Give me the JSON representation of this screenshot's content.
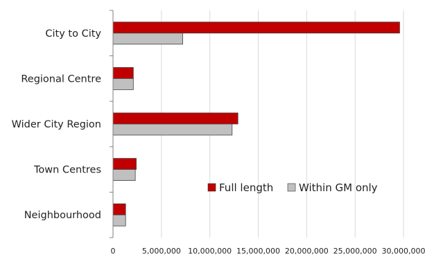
{
  "chart_data": {
    "type": "bar",
    "orientation": "horizontal",
    "categories": [
      "City to City",
      "Regional Centre",
      "Wider City Region",
      "Town Centres",
      "Neighbourhood"
    ],
    "series": [
      {
        "name": "Full length",
        "color": "#c00000",
        "values": [
          29600000,
          2100000,
          12900000,
          2400000,
          1300000
        ]
      },
      {
        "name": "Within GM only",
        "color": "#c0c0c0",
        "values": [
          7200000,
          2100000,
          12300000,
          2300000,
          1300000
        ]
      }
    ],
    "xlim": [
      0,
      30000000
    ],
    "xticks": [
      0,
      5000000,
      10000000,
      15000000,
      20000000,
      25000000,
      30000000
    ],
    "xtick_labels": [
      "0",
      "5,000,000",
      "10,000,000",
      "15,000,000",
      "20,000,000",
      "25,000,000",
      "30,000,000"
    ],
    "grid": "vertical",
    "legend_position": "inside-lower-right",
    "title": "",
    "xlabel": "",
    "ylabel": ""
  }
}
